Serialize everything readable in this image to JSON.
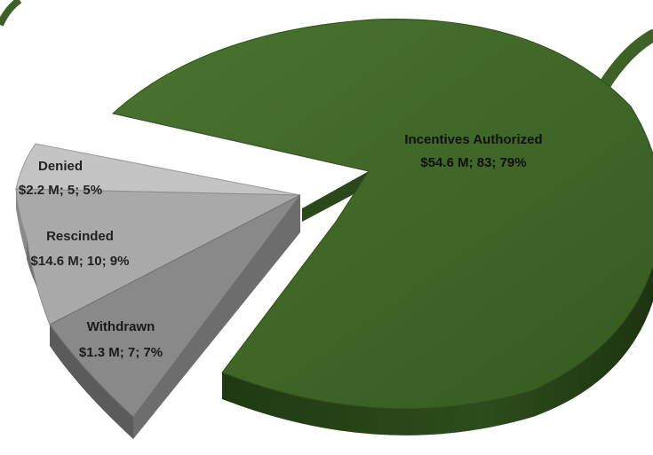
{
  "chart_data": {
    "type": "pie",
    "title": "",
    "slices": [
      {
        "name": "Incentives Authorized",
        "amount": "$54.6 M",
        "count": 83,
        "percent": 79,
        "color": "#3e6226",
        "exploded": false
      },
      {
        "name": "Withdrawn",
        "amount": "$1.3 M",
        "count": 7,
        "percent": 7,
        "color": "#878787",
        "exploded": true
      },
      {
        "name": "Rescinded",
        "amount": "$14.6 M",
        "count": 10,
        "percent": 9,
        "color": "#a6a6a6",
        "exploded": true
      },
      {
        "name": "Denied",
        "amount": "$2.2 M",
        "count": 5,
        "percent": 5,
        "color": "#c4c4c4",
        "exploded": true
      }
    ],
    "labels": [
      {
        "name": "Incentives Authorized",
        "value_text": "$54.6  M; 83; 79%"
      },
      {
        "name": "Withdrawn",
        "value_text": "$1.3  M; 7; 7%"
      },
      {
        "name": "Rescinded",
        "value_text": "$14.6  M; 10; 9%"
      },
      {
        "name": "Denied",
        "value_text": "$2.2  M; 5; 5%"
      }
    ],
    "style": "3d-exploded-pie",
    "legend": "none"
  }
}
